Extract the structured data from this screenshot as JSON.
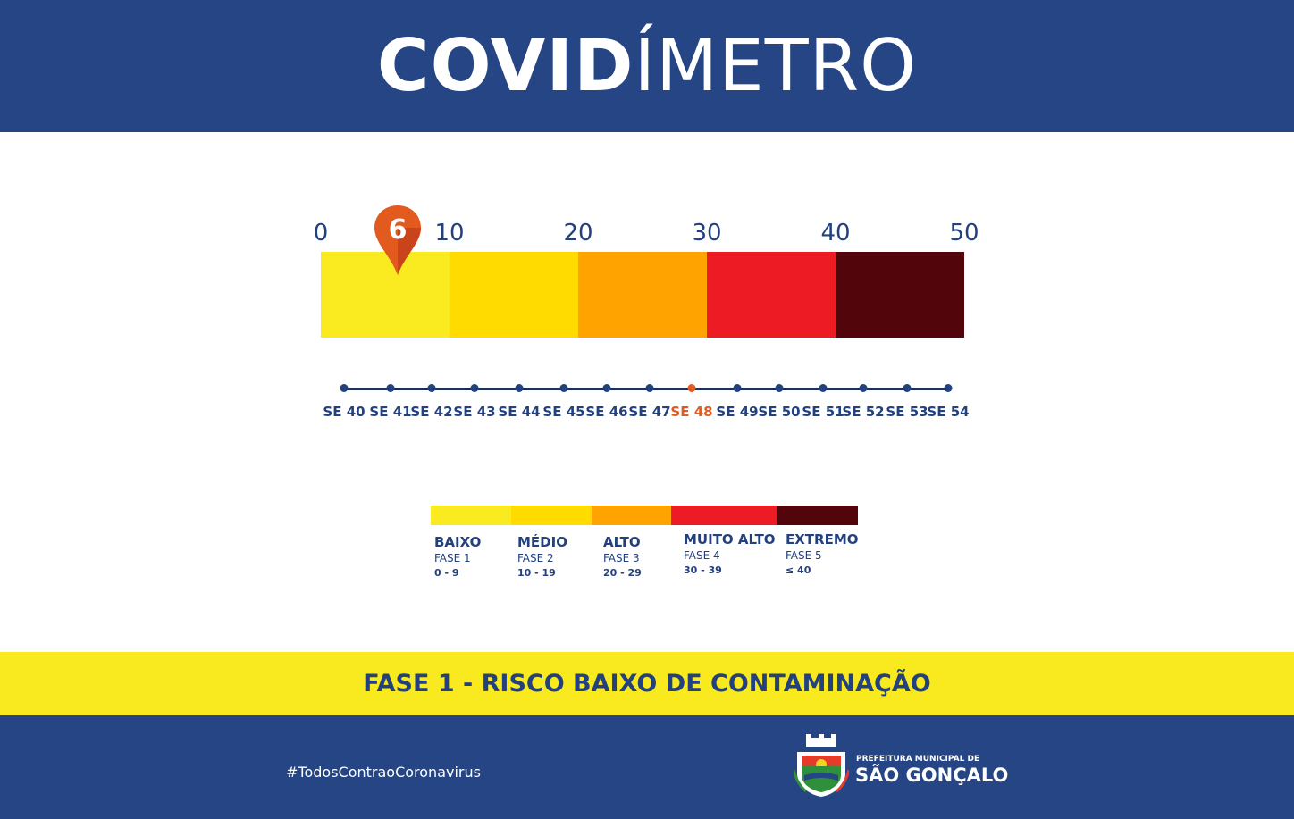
{
  "header": {
    "title_bold": "COVID",
    "title_light": "ÍMETRO",
    "bg": "#254584"
  },
  "scale": {
    "ticks": [
      "0",
      "10",
      "20",
      "30",
      "40",
      "50"
    ],
    "segments": [
      {
        "color": "#faea20"
      },
      {
        "color": "#ffdb00"
      },
      {
        "color": "#ffa300"
      },
      {
        "color": "#ed1c24"
      },
      {
        "color": "#52060c"
      }
    ],
    "current_value": "6",
    "current_value_num": 6,
    "scale_max": 50,
    "marker_color": "#e35a1e"
  },
  "timeline": {
    "weeks": [
      "SE 40",
      "SE 41",
      "SE 42",
      "SE 43",
      "SE 44",
      "SE 45",
      "SE 46",
      "SE 47",
      "SE 48",
      "SE 49",
      "SE 50",
      "SE 51",
      "SE 52",
      "SE 53",
      "SE 54"
    ],
    "current_week": "SE 48",
    "highlight_color": "#e35a1e"
  },
  "legend": [
    {
      "name": "BAIXO",
      "phase": "FASE 1",
      "range": "0 - 9",
      "color": "#faea20"
    },
    {
      "name": "MÉDIO",
      "phase": "FASE 2",
      "range": "10 - 19",
      "color": "#ffdb00"
    },
    {
      "name": "ALTO",
      "phase": "FASE 3",
      "range": "20 - 29",
      "color": "#ffa300"
    },
    {
      "name": "MUITO ALTO",
      "phase": "FASE 4",
      "range": "30 - 39",
      "color": "#ed1c24"
    },
    {
      "name": "EXTREMO",
      "phase": "FASE 5",
      "range": "≤ 40",
      "color": "#52060c"
    }
  ],
  "status_band": {
    "text": "FASE 1 - RISCO BAIXO DE CONTAMINAÇÃO",
    "bg": "#f8ea1e"
  },
  "footer": {
    "hashtag": "#TodosContraoCoronavirus",
    "logo_small": "PREFEITURA MUNICIPAL DE",
    "logo_big": "SÃO GONÇALO",
    "crest_icon": "coat-of-arms-icon"
  }
}
